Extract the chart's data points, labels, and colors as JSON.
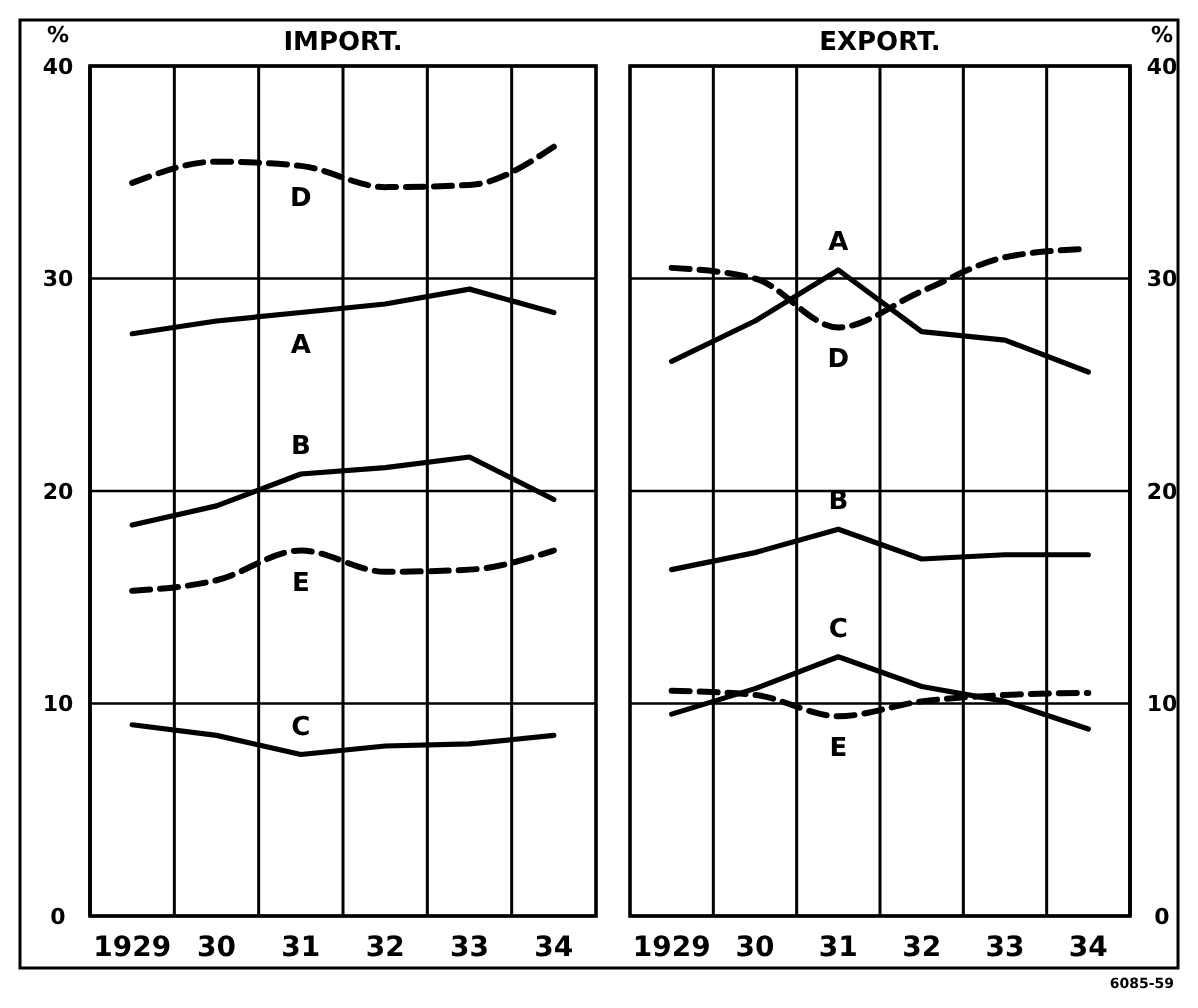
{
  "chart_data": [
    {
      "type": "line",
      "title": "IMPORT.",
      "ylabel": "%",
      "categories": [
        "1929",
        "30",
        "31",
        "32",
        "33",
        "34"
      ],
      "ylim": [
        0,
        40
      ],
      "yticks": [
        0,
        10,
        20,
        30,
        40
      ],
      "grid": true,
      "marker": "none",
      "series": [
        {
          "name": "A",
          "color": "#000000",
          "line_style": "solid",
          "values": [
            27.4,
            28.0,
            28.4,
            28.8,
            29.5,
            28.4
          ]
        },
        {
          "name": "B",
          "color": "#000000",
          "line_style": "solid",
          "values": [
            18.4,
            19.3,
            20.8,
            21.1,
            21.6,
            19.6
          ]
        },
        {
          "name": "C",
          "color": "#000000",
          "line_style": "solid",
          "values": [
            9.0,
            8.5,
            7.6,
            8.0,
            8.1,
            8.5
          ]
        },
        {
          "name": "D",
          "color": "#000000",
          "line_style": "dashed",
          "values": [
            34.5,
            35.5,
            35.3,
            34.3,
            34.4,
            36.2
          ]
        },
        {
          "name": "E",
          "color": "#000000",
          "line_style": "dashed",
          "values": [
            15.3,
            15.8,
            17.2,
            16.2,
            16.3,
            17.2
          ]
        }
      ]
    },
    {
      "type": "line",
      "title": "EXPORT.",
      "ylabel": "%",
      "categories": [
        "1929",
        "30",
        "31",
        "32",
        "33",
        "34"
      ],
      "ylim": [
        0,
        40
      ],
      "yticks": [
        0,
        10,
        20,
        30,
        40
      ],
      "grid": true,
      "marker": "none",
      "annotations": [
        "6085-59"
      ],
      "series": [
        {
          "name": "A",
          "color": "#000000",
          "line_style": "solid",
          "values": [
            26.1,
            28.0,
            30.4,
            27.5,
            27.1,
            25.6
          ]
        },
        {
          "name": "B",
          "color": "#000000",
          "line_style": "solid",
          "values": [
            16.3,
            17.1,
            18.2,
            16.8,
            17.0,
            17.0
          ]
        },
        {
          "name": "C",
          "color": "#000000",
          "line_style": "solid",
          "values": [
            9.5,
            10.7,
            12.2,
            10.8,
            10.1,
            8.8
          ]
        },
        {
          "name": "D",
          "color": "#000000",
          "line_style": "dashed",
          "values": [
            30.5,
            30.0,
            27.7,
            29.4,
            31.0,
            31.4
          ]
        },
        {
          "name": "E",
          "color": "#000000",
          "line_style": "dashed",
          "values": [
            10.6,
            10.4,
            9.4,
            10.1,
            10.4,
            10.5
          ]
        }
      ]
    }
  ]
}
